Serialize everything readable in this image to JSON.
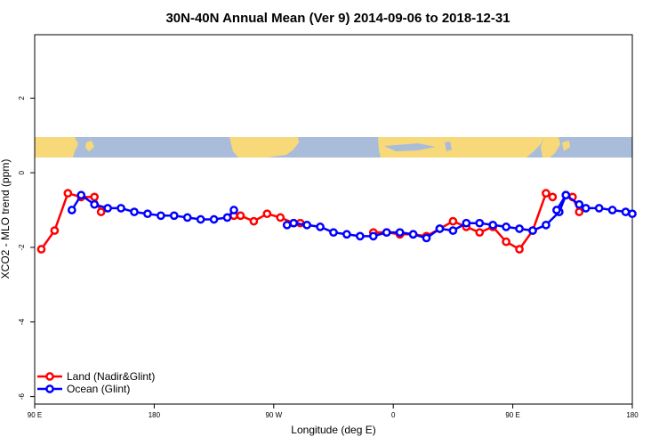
{
  "chart_data": {
    "type": "line",
    "title": "30N-40N Annual Mean (Ver 9)   2014-09-06 to 2018-12-31",
    "xlabel": "Longitude (deg E)",
    "ylabel": "XCO2 - MLO trend (ppm)",
    "xlim": [
      90,
      540
    ],
    "ylim": [
      -6.2,
      3.7
    ],
    "x_ticks": [
      {
        "value": 90,
        "label": "90 E"
      },
      {
        "value": 180,
        "label": "180"
      },
      {
        "value": 270,
        "label": "90 W"
      },
      {
        "value": 360,
        "label": "0"
      },
      {
        "value": 450,
        "label": "90 E"
      },
      {
        "value": 540,
        "label": "180"
      }
    ],
    "y_ticks": [
      {
        "value": 2,
        "label": "2"
      },
      {
        "value": 0,
        "label": "0"
      },
      {
        "value": -2,
        "label": "-2"
      },
      {
        "value": -4,
        "label": "-4"
      },
      {
        "value": -6,
        "label": "-6"
      }
    ],
    "legend_position": "bottom-left",
    "grid": false,
    "map_strip": {
      "y_range": [
        0.4,
        0.95
      ],
      "ocean_color": "#a9bcd9",
      "land_color": "#f8d97a"
    },
    "series": [
      {
        "name": "Land (Nadir&Glint)",
        "color": "#ff0000",
        "segments": [
          {
            "x": [
              95,
              105,
              115,
              125,
              135,
              140
            ],
            "y": [
              -2.05,
              -1.55,
              -0.55,
              -0.65,
              -0.65,
              -1.05
            ]
          },
          {
            "x": [
              240,
              245,
              255,
              265,
              275,
              285,
              290
            ],
            "y": [
              -1.15,
              -1.15,
              -1.3,
              -1.1,
              -1.2,
              -1.35,
              -1.35
            ]
          },
          {
            "x": [
              345,
              355,
              365,
              375,
              385,
              395,
              405,
              415,
              425,
              435,
              445,
              455,
              465,
              475,
              480
            ],
            "y": [
              -1.6,
              -1.6,
              -1.65,
              -1.65,
              -1.7,
              -1.5,
              -1.3,
              -1.45,
              -1.6,
              -1.45,
              -1.85,
              -2.05,
              -1.55,
              -0.55,
              -0.65
            ]
          },
          {
            "x": [
              495,
              500
            ],
            "y": [
              -0.65,
              -1.05
            ]
          }
        ]
      },
      {
        "name": "Ocean (Glint)",
        "color": "#0000ff",
        "segments": [
          {
            "x": [
              118,
              125,
              135,
              145,
              155,
              165,
              175,
              185,
              195,
              205,
              215,
              225,
              235,
              240
            ],
            "y": [
              -1.0,
              -0.6,
              -0.85,
              -0.95,
              -0.95,
              -1.05,
              -1.1,
              -1.15,
              -1.15,
              -1.2,
              -1.25,
              -1.25,
              -1.2,
              -1.0
            ]
          },
          {
            "x": [
              280,
              285,
              295,
              305,
              315,
              325,
              335,
              345,
              355,
              365,
              375,
              385,
              395,
              405,
              415,
              425,
              435,
              445,
              455,
              465,
              475,
              485,
              490
            ],
            "y": [
              -1.4,
              -1.35,
              -1.4,
              -1.45,
              -1.6,
              -1.65,
              -1.7,
              -1.7,
              -1.6,
              -1.6,
              -1.65,
              -1.75,
              -1.5,
              -1.55,
              -1.35,
              -1.35,
              -1.4,
              -1.45,
              -1.5,
              -1.55,
              -1.4,
              -1.05,
              -0.6
            ]
          },
          {
            "x": [
              483,
              490,
              500,
              505,
              515,
              525,
              535,
              540
            ],
            "y": [
              -1.0,
              -0.6,
              -0.85,
              -0.95,
              -0.95,
              -1.0,
              -1.05,
              -1.1
            ]
          }
        ]
      }
    ]
  }
}
